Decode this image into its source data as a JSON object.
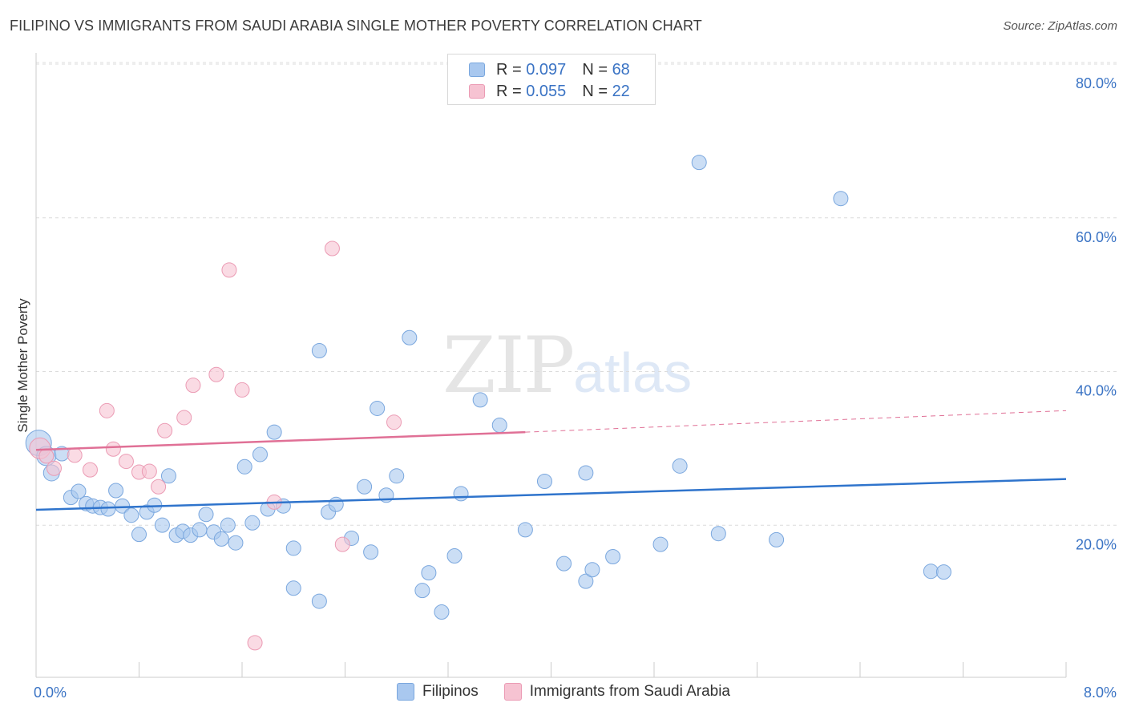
{
  "header": {
    "title": "FILIPINO VS IMMIGRANTS FROM SAUDI ARABIA SINGLE MOTHER POVERTY CORRELATION CHART",
    "source": "Source: ZipAtlas.com"
  },
  "legend": {
    "rows": [
      {
        "r_label": "R =",
        "r_value": "0.097",
        "n_label": "N =",
        "n_value": "68"
      },
      {
        "r_label": "R =",
        "r_value": "0.055",
        "n_label": "N =",
        "n_value": "22"
      }
    ]
  },
  "watermark": {
    "zip": "ZIP",
    "atlas": "atlas"
  },
  "colors": {
    "blue": "#a9c8ef",
    "blue_stroke": "#7aa7de",
    "blue_line": "#2f74cc",
    "pink": "#f6c3d2",
    "pink_stroke": "#eb9bb4",
    "pink_line": "#e07096",
    "tick_label": "#3a73c4",
    "grid": "#dcdcdc"
  },
  "chart_data": {
    "type": "scatter",
    "title": "FILIPINO VS IMMIGRANTS FROM SAUDI ARABIA SINGLE MOTHER POVERTY CORRELATION CHART",
    "xlabel": "",
    "ylabel": "Single Mother Poverty",
    "xlim": [
      0,
      8
    ],
    "ylim": [
      0,
      80
    ],
    "x_tick_labels": [
      "0.0%",
      "8.0%"
    ],
    "y_ticks": [
      20,
      40,
      60,
      80
    ],
    "y_tick_labels": [
      "20.0%",
      "40.0%",
      "60.0%",
      "80.0%"
    ],
    "grid": true,
    "legend_position": "top-center",
    "series": [
      {
        "name": "Filipinos",
        "color": "#a9c8ef",
        "trend": {
          "x": [
            0.0,
            8.0
          ],
          "y": [
            21.8,
            25.8
          ],
          "dashed_from": null
        },
        "points": [
          [
            0.02,
            30.5,
            16
          ],
          [
            0.08,
            28.8,
            12
          ],
          [
            0.12,
            26.6,
            10
          ],
          [
            0.2,
            29.1,
            9
          ],
          [
            0.27,
            23.4,
            9
          ],
          [
            0.33,
            24.2,
            9
          ],
          [
            0.39,
            22.6,
            9
          ],
          [
            0.44,
            22.3,
            9
          ],
          [
            0.5,
            22.1,
            9
          ],
          [
            0.56,
            21.9,
            9
          ],
          [
            0.62,
            24.3,
            9
          ],
          [
            0.67,
            22.3,
            9
          ],
          [
            0.74,
            21.1,
            9
          ],
          [
            0.8,
            18.6,
            9
          ],
          [
            0.86,
            21.5,
            9
          ],
          [
            0.92,
            22.4,
            9
          ],
          [
            0.98,
            19.8,
            9
          ],
          [
            1.03,
            26.2,
            9
          ],
          [
            1.09,
            18.5,
            9
          ],
          [
            1.14,
            19.0,
            9
          ],
          [
            1.2,
            18.5,
            9
          ],
          [
            1.27,
            19.2,
            9
          ],
          [
            1.32,
            21.2,
            9
          ],
          [
            1.38,
            18.9,
            9
          ],
          [
            1.44,
            18.0,
            9
          ],
          [
            1.49,
            19.8,
            9
          ],
          [
            1.55,
            17.5,
            9
          ],
          [
            1.62,
            27.4,
            9
          ],
          [
            1.68,
            20.1,
            9
          ],
          [
            1.74,
            29.0,
            9
          ],
          [
            1.8,
            21.9,
            9
          ],
          [
            1.85,
            31.9,
            9
          ],
          [
            1.92,
            22.3,
            9
          ],
          [
            2.0,
            16.8,
            9
          ],
          [
            2.0,
            11.6,
            9
          ],
          [
            2.2,
            42.5,
            9
          ],
          [
            2.2,
            9.9,
            9
          ],
          [
            2.27,
            21.5,
            9
          ],
          [
            2.33,
            22.5,
            9
          ],
          [
            2.45,
            18.1,
            9
          ],
          [
            2.55,
            24.8,
            9
          ],
          [
            2.6,
            16.3,
            9
          ],
          [
            2.65,
            35.0,
            9
          ],
          [
            2.72,
            23.7,
            9
          ],
          [
            2.8,
            26.2,
            9
          ],
          [
            2.9,
            44.2,
            9
          ],
          [
            3.0,
            11.3,
            9
          ],
          [
            3.05,
            13.6,
            9
          ],
          [
            3.15,
            8.5,
            9
          ],
          [
            3.25,
            15.8,
            9
          ],
          [
            3.3,
            23.9,
            9
          ],
          [
            3.45,
            36.1,
            9
          ],
          [
            3.6,
            32.8,
            9
          ],
          [
            3.8,
            19.2,
            9
          ],
          [
            3.95,
            25.5,
            9
          ],
          [
            4.1,
            14.8,
            9
          ],
          [
            4.27,
            26.6,
            9
          ],
          [
            4.27,
            12.5,
            9
          ],
          [
            4.32,
            14.0,
            9
          ],
          [
            4.48,
            15.7,
            9
          ],
          [
            4.85,
            17.3,
            9
          ],
          [
            5.0,
            27.5,
            9
          ],
          [
            5.15,
            67.0,
            9
          ],
          [
            5.3,
            18.7,
            9
          ],
          [
            5.75,
            17.9,
            9
          ],
          [
            6.25,
            62.3,
            9
          ],
          [
            6.95,
            13.8,
            9
          ],
          [
            7.05,
            13.7,
            9
          ]
        ]
      },
      {
        "name": "Immigrants from Saudi Arabia",
        "color": "#f6c3d2",
        "trend": {
          "x": [
            0.0,
            3.8,
            8.0
          ],
          "y": [
            29.6,
            31.9,
            34.7
          ],
          "dashed_from": 3.8
        },
        "points": [
          [
            0.03,
            29.8,
            13
          ],
          [
            0.08,
            28.8,
            9
          ],
          [
            0.14,
            27.2,
            9
          ],
          [
            0.3,
            28.9,
            9
          ],
          [
            0.42,
            27.0,
            9
          ],
          [
            0.55,
            34.7,
            9
          ],
          [
            0.6,
            29.7,
            9
          ],
          [
            0.7,
            28.1,
            9
          ],
          [
            0.8,
            26.7,
            9
          ],
          [
            0.88,
            26.8,
            9
          ],
          [
            0.95,
            24.8,
            9
          ],
          [
            1.0,
            32.1,
            9
          ],
          [
            1.15,
            33.8,
            9
          ],
          [
            1.22,
            38.0,
            9
          ],
          [
            1.4,
            39.4,
            9
          ],
          [
            1.5,
            53.0,
            9
          ],
          [
            1.6,
            37.4,
            9
          ],
          [
            1.7,
            4.5,
            9
          ],
          [
            1.85,
            22.8,
            9
          ],
          [
            2.3,
            55.8,
            9
          ],
          [
            2.38,
            17.3,
            9
          ],
          [
            2.78,
            33.2,
            9
          ]
        ]
      }
    ]
  }
}
